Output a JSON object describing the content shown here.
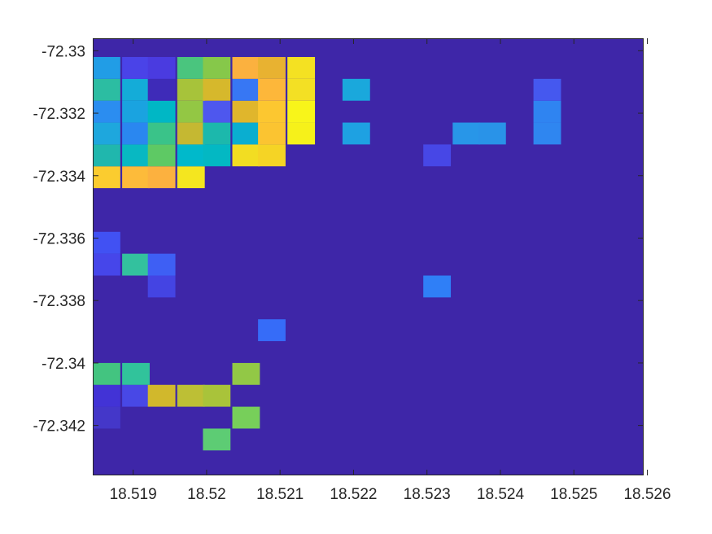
{
  "chart_data": {
    "type": "heatmap",
    "title": "",
    "xlabel": "",
    "ylabel": "",
    "grid": false,
    "colorbar": false,
    "colormap": "parula",
    "background_color": "#3e26a8",
    "xlim": [
      18.51845,
      18.52595
    ],
    "ylim": [
      -72.3296,
      -72.3436
    ],
    "y_direction": "reverse",
    "xticks": [
      18.519,
      18.52,
      18.521,
      18.522,
      18.523,
      18.524,
      18.525,
      18.526
    ],
    "xtick_labels": [
      "18.519",
      "18.52",
      "18.521",
      "18.522",
      "18.523",
      "18.524",
      "18.525",
      "18.526"
    ],
    "yticks": [
      -72.342,
      -72.34,
      -72.338,
      -72.336,
      -72.334,
      -72.332,
      -72.33
    ],
    "ytick_labels": [
      "-72.342",
      "-72.34",
      "-72.338",
      "-72.336",
      "-72.334",
      "-72.332",
      "-72.33"
    ],
    "cell_size": [
      0.000375,
      0.0007
    ],
    "cells": [
      {
        "x": 18.51995,
        "y": -72.3428,
        "color": "#5dcc74"
      },
      {
        "x": 18.51845,
        "y": -72.3421,
        "color": "#4437c9"
      },
      {
        "x": 18.52035,
        "y": -72.3421,
        "color": "#77cf5a"
      },
      {
        "x": 18.51845,
        "y": -72.3414,
        "color": "#4233d6"
      },
      {
        "x": 18.51885,
        "y": -72.3414,
        "color": "#4848e6"
      },
      {
        "x": 18.5192,
        "y": -72.3414,
        "color": "#d1b82c"
      },
      {
        "x": 18.5196,
        "y": -72.3414,
        "color": "#bdbf35"
      },
      {
        "x": 18.51995,
        "y": -72.3414,
        "color": "#a9c33a"
      },
      {
        "x": 18.51845,
        "y": -72.3407,
        "color": "#43c480"
      },
      {
        "x": 18.51885,
        "y": -72.3407,
        "color": "#31c39b"
      },
      {
        "x": 18.52035,
        "y": -72.3407,
        "color": "#92c846"
      },
      {
        "x": 18.5207,
        "y": -72.3393,
        "color": "#366cf8"
      },
      {
        "x": 18.5192,
        "y": -72.3379,
        "color": "#4444e3"
      },
      {
        "x": 18.52295,
        "y": -72.3379,
        "color": "#2f7ff7"
      },
      {
        "x": 18.51845,
        "y": -72.3372,
        "color": "#4646ea"
      },
      {
        "x": 18.51885,
        "y": -72.3372,
        "color": "#33c19e"
      },
      {
        "x": 18.5192,
        "y": -72.3372,
        "color": "#3e5ff4"
      },
      {
        "x": 18.51845,
        "y": -72.3365,
        "color": "#4151f3"
      },
      {
        "x": 18.51845,
        "y": -72.3344,
        "color": "#fbcc2f"
      },
      {
        "x": 18.51885,
        "y": -72.3344,
        "color": "#fdbb3a"
      },
      {
        "x": 18.5192,
        "y": -72.3344,
        "color": "#fcb13f"
      },
      {
        "x": 18.5196,
        "y": -72.3344,
        "color": "#f4e61f"
      },
      {
        "x": 18.51845,
        "y": -72.3337,
        "color": "#20b7ad"
      },
      {
        "x": 18.51885,
        "y": -72.3337,
        "color": "#08b8c2"
      },
      {
        "x": 18.5192,
        "y": -72.3337,
        "color": "#5ec964"
      },
      {
        "x": 18.5196,
        "y": -72.3337,
        "color": "#00b9cb"
      },
      {
        "x": 18.51995,
        "y": -72.3337,
        "color": "#03b8c3"
      },
      {
        "x": 18.52035,
        "y": -72.3337,
        "color": "#f2dd22"
      },
      {
        "x": 18.5207,
        "y": -72.3337,
        "color": "#f5d425"
      },
      {
        "x": 18.52295,
        "y": -72.3337,
        "color": "#4747e6"
      },
      {
        "x": 18.51845,
        "y": -72.333,
        "color": "#1ea7dd"
      },
      {
        "x": 18.51885,
        "y": -72.333,
        "color": "#2a87f0"
      },
      {
        "x": 18.5192,
        "y": -72.333,
        "color": "#3ac389"
      },
      {
        "x": 18.5196,
        "y": -72.333,
        "color": "#c5b832"
      },
      {
        "x": 18.51995,
        "y": -72.333,
        "color": "#1cb8ac"
      },
      {
        "x": 18.52035,
        "y": -72.333,
        "color": "#0aaed0"
      },
      {
        "x": 18.5207,
        "y": -72.333,
        "color": "#fbc431"
      },
      {
        "x": 18.5211,
        "y": -72.333,
        "color": "#f6f11a"
      },
      {
        "x": 18.52185,
        "y": -72.333,
        "color": "#1ea1e2"
      },
      {
        "x": 18.52335,
        "y": -72.333,
        "color": "#2896e8"
      },
      {
        "x": 18.5237,
        "y": -72.333,
        "color": "#2993e8"
      },
      {
        "x": 18.52445,
        "y": -72.333,
        "color": "#2f86f0"
      },
      {
        "x": 18.51845,
        "y": -72.3323,
        "color": "#2b8df0"
      },
      {
        "x": 18.51885,
        "y": -72.3323,
        "color": "#1aa3e0"
      },
      {
        "x": 18.5192,
        "y": -72.3323,
        "color": "#00b7c5"
      },
      {
        "x": 18.5196,
        "y": -72.3323,
        "color": "#93c744"
      },
      {
        "x": 18.51995,
        "y": -72.3323,
        "color": "#4e57ee"
      },
      {
        "x": 18.52035,
        "y": -72.3323,
        "color": "#e0b62c"
      },
      {
        "x": 18.5207,
        "y": -72.3323,
        "color": "#fcc730"
      },
      {
        "x": 18.5211,
        "y": -72.3323,
        "color": "#f8f51a"
      },
      {
        "x": 18.52445,
        "y": -72.3323,
        "color": "#2f84f1"
      },
      {
        "x": 18.51845,
        "y": -72.3316,
        "color": "#2cbda2"
      },
      {
        "x": 18.51885,
        "y": -72.3316,
        "color": "#14acd8"
      },
      {
        "x": 18.5192,
        "y": -72.3316,
        "color": "#3e2bb8"
      },
      {
        "x": 18.5196,
        "y": -72.3316,
        "color": "#a7c33a"
      },
      {
        "x": 18.51995,
        "y": -72.3316,
        "color": "#d6b82c"
      },
      {
        "x": 18.52035,
        "y": -72.3316,
        "color": "#3777f4"
      },
      {
        "x": 18.5207,
        "y": -72.3316,
        "color": "#fdb73a"
      },
      {
        "x": 18.5211,
        "y": -72.3316,
        "color": "#f3e024"
      },
      {
        "x": 18.52185,
        "y": -72.3316,
        "color": "#1aa8dc"
      },
      {
        "x": 18.52445,
        "y": -72.3316,
        "color": "#4558ef"
      },
      {
        "x": 18.51845,
        "y": -72.3309,
        "color": "#219de6"
      },
      {
        "x": 18.51885,
        "y": -72.3309,
        "color": "#4a43e8"
      },
      {
        "x": 18.5192,
        "y": -72.3309,
        "color": "#4a3be0"
      },
      {
        "x": 18.5196,
        "y": -72.3309,
        "color": "#4ac57e"
      },
      {
        "x": 18.51995,
        "y": -72.3309,
        "color": "#86c84a"
      },
      {
        "x": 18.52035,
        "y": -72.3309,
        "color": "#fbb13f"
      },
      {
        "x": 18.5207,
        "y": -72.3309,
        "color": "#e8b231"
      },
      {
        "x": 18.5211,
        "y": -72.3309,
        "color": "#f4e122"
      }
    ]
  }
}
